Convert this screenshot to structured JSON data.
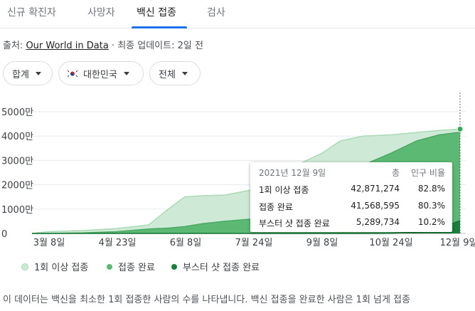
{
  "tabs": [
    "신규 확진자",
    "사망자",
    "백신 접종",
    "검사"
  ],
  "source": {
    "prefix": "출처: ",
    "link": "Our World in Data",
    "suffix": " · 최종 업데이트: 2일 전"
  },
  "filters": {
    "metric": "합계",
    "region": "대한민국",
    "scope": "전체"
  },
  "colors": {
    "accent": "#1a73e8",
    "first_dose": "#ceead6",
    "fully": "#5bb974",
    "booster": "#188038"
  },
  "chart_data": {
    "type": "area",
    "x_ticks": [
      "3월 8일",
      "4월 23일",
      "6월 8일",
      "7월 24일",
      "9월 8일",
      "10월 24일",
      "12월 9일"
    ],
    "y_ticks": [
      "5000만",
      "4000만",
      "3000만",
      "2000만",
      "1000만",
      "0"
    ],
    "ylim": [
      0,
      50000000
    ],
    "x_dates": [
      "2021-02-26",
      "2021-03-08",
      "2021-04-01",
      "2021-04-23",
      "2021-05-15",
      "2021-05-28",
      "2021-06-08",
      "2021-06-20",
      "2021-07-05",
      "2021-07-24",
      "2021-08-10",
      "2021-08-25",
      "2021-09-08",
      "2021-09-20",
      "2021-10-05",
      "2021-10-24",
      "2021-11-10",
      "2021-11-25",
      "2021-12-09"
    ],
    "series": [
      {
        "name": "1회 이상 접종",
        "values": [
          0,
          700000,
          1200000,
          2000000,
          3500000,
          10000000,
          15000000,
          15500000,
          15800000,
          18000000,
          25000000,
          29000000,
          33000000,
          38000000,
          40000000,
          40500000,
          41500000,
          42300000,
          42871274
        ]
      },
      {
        "name": "접종 완료",
        "values": [
          0,
          0,
          200000,
          700000,
          1800000,
          2200000,
          2800000,
          4000000,
          5000000,
          6000000,
          8000000,
          11000000,
          16000000,
          20000000,
          28000000,
          33000000,
          38000000,
          40500000,
          41568595
        ]
      },
      {
        "name": "부스터 샷 접종 완료",
        "values": [
          0,
          0,
          0,
          0,
          0,
          0,
          0,
          0,
          0,
          0,
          0,
          0,
          0,
          0,
          0,
          100000,
          500000,
          1800000,
          5289734
        ]
      }
    ],
    "tooltip": {
      "date": "2021년 12월 9일",
      "col_total": "총",
      "col_ratio": "인구 비율",
      "rows": [
        {
          "label": "1회 이상 접종",
          "total": "42,871,274",
          "ratio": "82.8%"
        },
        {
          "label": "접종 완료",
          "total": "41,568,595",
          "ratio": "80.3%"
        },
        {
          "label": "부스터 샷 접종 완료",
          "total": "5,289,734",
          "ratio": "10.2%"
        }
      ]
    }
  },
  "description": "이 데이터는 백신을 최소한 1회 접종한 사람의 수를 나타냅니다. 백신 접종을 완료한 사람은 1회 넘게 접종"
}
